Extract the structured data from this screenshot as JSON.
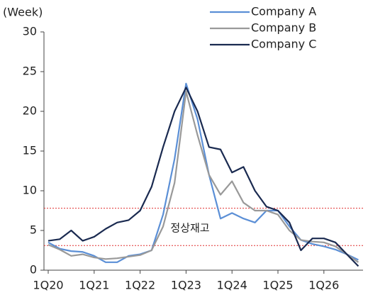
{
  "chart_data": {
    "type": "line",
    "y_label": "(Week)",
    "annotation": "정상재고",
    "reference_lines": [
      7.8,
      3.1
    ],
    "reference_color": "#e03030",
    "categories": [
      "1Q20",
      null,
      null,
      null,
      "1Q21",
      null,
      null,
      null,
      "1Q22",
      null,
      null,
      null,
      "1Q23",
      null,
      null,
      null,
      "1Q24",
      null,
      null,
      null,
      "1Q25",
      null,
      null,
      null,
      "1Q26",
      null,
      null,
      null
    ],
    "series": [
      {
        "name": "Company A",
        "color": "#5b8fd6",
        "values": [
          3.5,
          2.7,
          2.4,
          2.3,
          1.8,
          1.0,
          1.0,
          1.8,
          2.0,
          2.5,
          7,
          14,
          23.5,
          19,
          12,
          6.5,
          7.2,
          6.5,
          6.0,
          7.5,
          7.5,
          5.5,
          3.8,
          3.3,
          3.0,
          2.6,
          2.0,
          1.3
        ]
      },
      {
        "name": "Company B",
        "color": "#999999",
        "values": [
          3.2,
          2.6,
          1.8,
          2.0,
          1.6,
          1.4,
          1.5,
          1.7,
          1.9,
          2.5,
          5.5,
          11,
          22.5,
          17,
          12,
          9.5,
          11.2,
          8.5,
          7.5,
          7.5,
          7.0,
          5.0,
          3.8,
          3.6,
          3.5,
          3.0,
          2.0,
          1.0
        ]
      },
      {
        "name": "Company C",
        "color": "#1a2a50",
        "values": [
          3.7,
          3.9,
          5.0,
          3.7,
          4.2,
          5.2,
          6.0,
          6.3,
          7.5,
          10.5,
          15.5,
          20,
          23,
          20,
          15.5,
          15.2,
          12.3,
          13,
          10,
          8,
          7.5,
          6.0,
          2.5,
          4.0,
          4.0,
          3.5,
          2.0,
          0.5
        ]
      }
    ],
    "ylim": [
      0,
      30
    ],
    "yticks": [
      0,
      5,
      10,
      15,
      20,
      25,
      30
    ],
    "legend": "top-right"
  }
}
